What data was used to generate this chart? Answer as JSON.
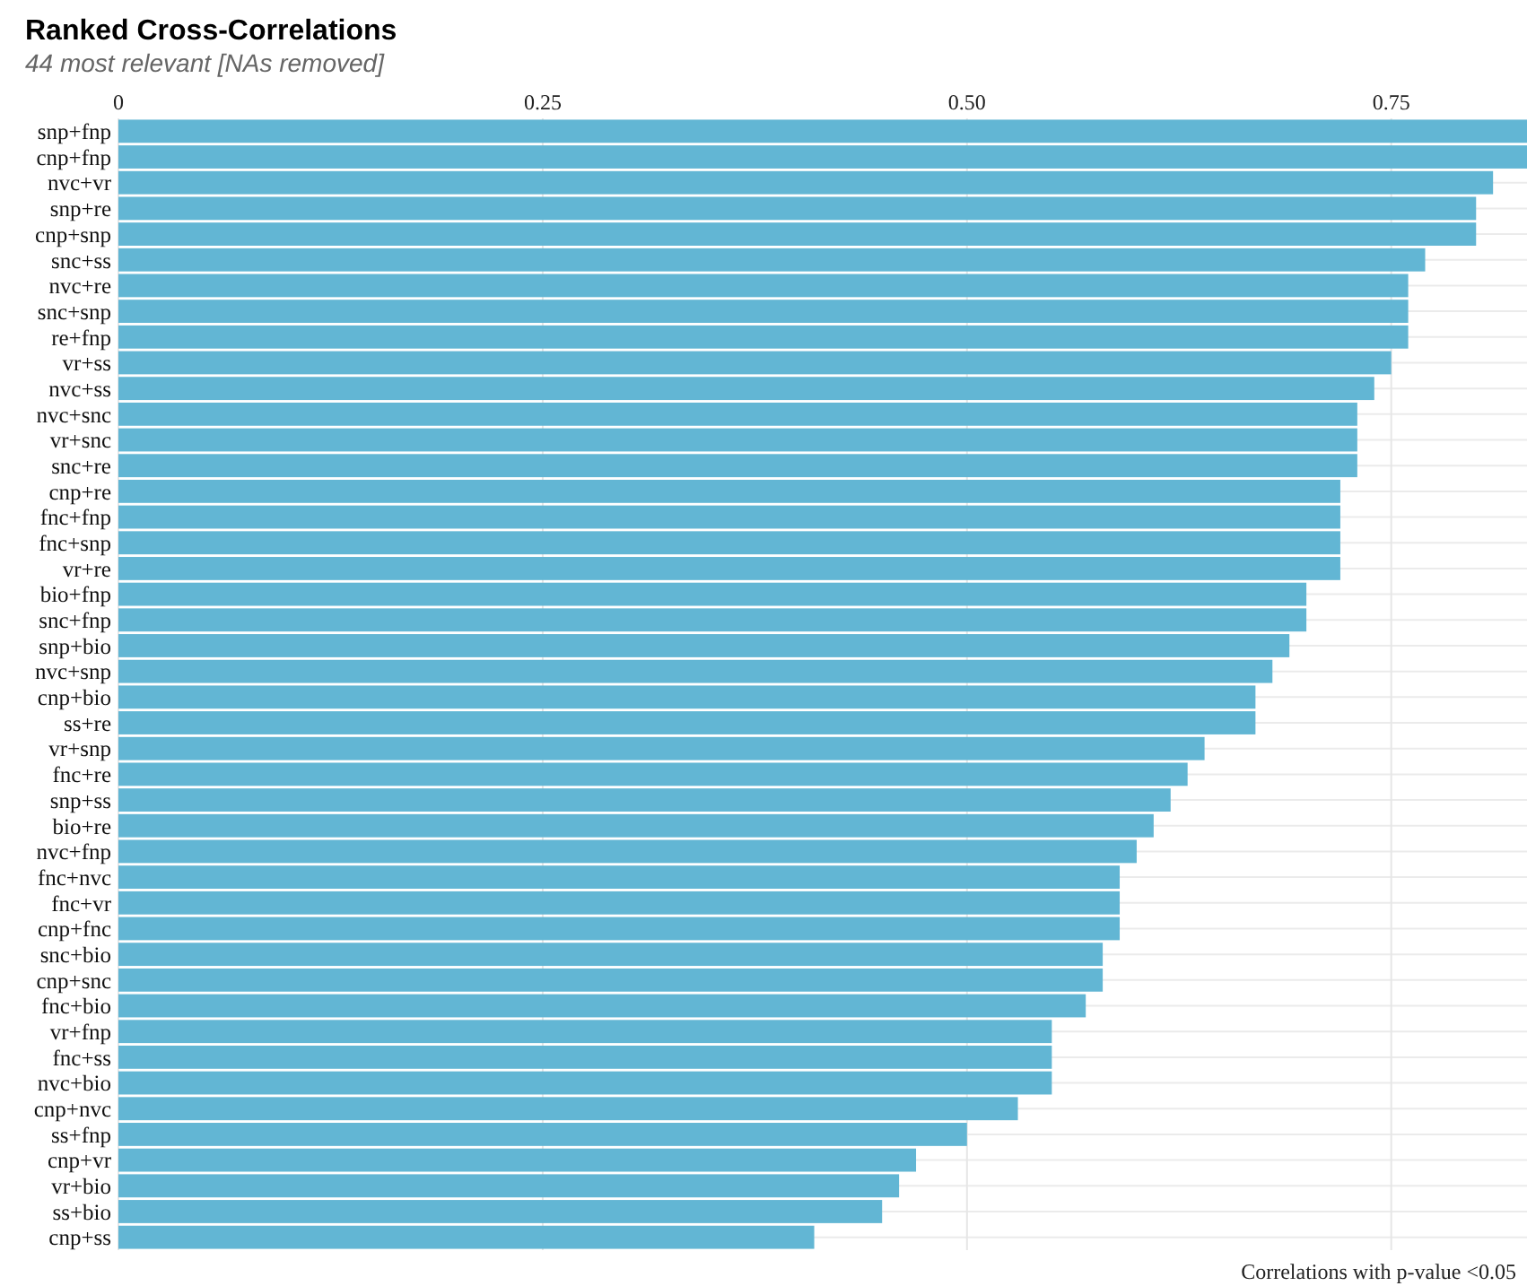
{
  "chart_data": {
    "type": "bar",
    "orientation": "horizontal",
    "title": "Ranked Cross-Correlations",
    "subtitle": "44 most relevant [NAs removed]",
    "categories": [
      "snp+fnp",
      "cnp+fnp",
      "nvc+vr",
      "snp+re",
      "cnp+snp",
      "snc+ss",
      "nvc+re",
      "snc+snp",
      "re+fnp",
      "vr+ss",
      "nvc+ss",
      "nvc+snc",
      "vr+snc",
      "snc+re",
      "cnp+re",
      "fnc+fnp",
      "fnc+snp",
      "vr+re",
      "bio+fnp",
      "snc+fnp",
      "snp+bio",
      "nvc+snp",
      "cnp+bio",
      "ss+re",
      "vr+snp",
      "fnc+re",
      "snp+ss",
      "bio+re",
      "nvc+fnp",
      "fnc+nvc",
      "fnc+vr",
      "cnp+fnc",
      "snc+bio",
      "cnp+snc",
      "fnc+bio",
      "vr+fnp",
      "fnc+ss",
      "nvc+bio",
      "cnp+nvc",
      "ss+fnp",
      "cnp+vr",
      "vr+bio",
      "ss+bio",
      "cnp+ss"
    ],
    "values": [
      0.83,
      0.83,
      0.81,
      0.8,
      0.8,
      0.77,
      0.76,
      0.76,
      0.76,
      0.75,
      0.74,
      0.73,
      0.73,
      0.73,
      0.72,
      0.72,
      0.72,
      0.72,
      0.7,
      0.7,
      0.69,
      0.68,
      0.67,
      0.67,
      0.64,
      0.63,
      0.62,
      0.61,
      0.6,
      0.59,
      0.59,
      0.59,
      0.58,
      0.58,
      0.57,
      0.55,
      0.55,
      0.55,
      0.53,
      0.5,
      0.47,
      0.46,
      0.45,
      0.41
    ],
    "color": "#62b6d4",
    "xlim": [
      0,
      0.83
    ],
    "xticks": [
      0,
      0.25,
      {
        "value": 0.5,
        "label": "0.50"
      },
      0.75
    ],
    "grid": true,
    "annotations": [
      "Correlations with p-value <0.05"
    ]
  }
}
